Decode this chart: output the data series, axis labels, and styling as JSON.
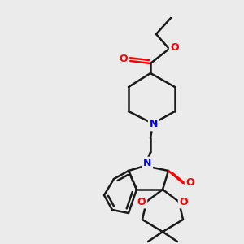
{
  "background_color": "#ebebeb",
  "bond_color": "#1a1a1a",
  "nitrogen_color": "#0000ff",
  "oxygen_color": "#ff0000",
  "lw": 1.8,
  "figsize": [
    3.0,
    3.0
  ],
  "dpi": 100,
  "xlim": [
    0,
    300
  ],
  "ylim": [
    0,
    300
  ]
}
